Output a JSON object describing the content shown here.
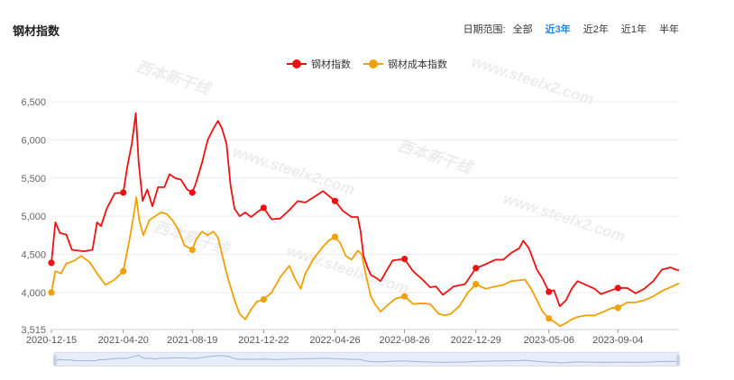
{
  "header": {
    "title": "钢材指数",
    "range_label": "日期范围:",
    "range_options": [
      "全部",
      "近3年",
      "近2年",
      "近1年",
      "半年"
    ],
    "active_range": "近3年"
  },
  "watermarks": [
    "西本新干线",
    "www.steelx2.com"
  ],
  "chart_data": {
    "type": "line",
    "legend_position": "top-center",
    "grid": true,
    "ylim": [
      3515,
      6500
    ],
    "yticks": [
      "3,515",
      "4,000",
      "4,500",
      "5,000",
      "5,500",
      "6,000",
      "6,500"
    ],
    "ytick_values": [
      3515,
      4000,
      4500,
      5000,
      5500,
      6000,
      6500
    ],
    "xticks": [
      "2020-12-15",
      "2021-04-20",
      "2021-08-19",
      "2021-12-22",
      "2022-04-26",
      "2022-08-26",
      "2022-12-29",
      "2023-05-06",
      "2023-09-04"
    ],
    "x_start": "2020-12-15",
    "x_end": "2023-12-20",
    "series": [
      {
        "name": "钢材指数",
        "color": "#ee1111",
        "points": [
          [
            "2020-12-15",
            4390
          ],
          [
            "2020-12-22",
            4920
          ],
          [
            "2020-12-30",
            4780
          ],
          [
            "2021-01-10",
            4760
          ],
          [
            "2021-01-20",
            4560
          ],
          [
            "2021-02-10",
            4540
          ],
          [
            "2021-02-25",
            4560
          ],
          [
            "2021-03-05",
            4920
          ],
          [
            "2021-03-12",
            4870
          ],
          [
            "2021-03-22",
            5100
          ],
          [
            "2021-04-05",
            5300
          ],
          [
            "2021-04-20",
            5310
          ],
          [
            "2021-04-27",
            5650
          ],
          [
            "2021-05-05",
            5950
          ],
          [
            "2021-05-12",
            6350
          ],
          [
            "2021-05-17",
            5700
          ],
          [
            "2021-05-24",
            5200
          ],
          [
            "2021-06-01",
            5350
          ],
          [
            "2021-06-10",
            5130
          ],
          [
            "2021-06-20",
            5380
          ],
          [
            "2021-07-01",
            5380
          ],
          [
            "2021-07-10",
            5550
          ],
          [
            "2021-07-20",
            5500
          ],
          [
            "2021-07-30",
            5480
          ],
          [
            "2021-08-10",
            5350
          ],
          [
            "2021-08-19",
            5310
          ],
          [
            "2021-08-26",
            5450
          ],
          [
            "2021-09-05",
            5700
          ],
          [
            "2021-09-15",
            6000
          ],
          [
            "2021-09-25",
            6150
          ],
          [
            "2021-10-03",
            6250
          ],
          [
            "2021-10-10",
            6150
          ],
          [
            "2021-10-18",
            5950
          ],
          [
            "2021-10-25",
            5400
          ],
          [
            "2021-11-01",
            5100
          ],
          [
            "2021-11-10",
            5000
          ],
          [
            "2021-11-20",
            5050
          ],
          [
            "2021-11-30",
            4990
          ],
          [
            "2021-12-10",
            5050
          ],
          [
            "2021-12-22",
            5110
          ],
          [
            "2022-01-05",
            4960
          ],
          [
            "2022-01-20",
            4970
          ],
          [
            "2022-02-05",
            5080
          ],
          [
            "2022-02-20",
            5200
          ],
          [
            "2022-03-05",
            5180
          ],
          [
            "2022-03-20",
            5250
          ],
          [
            "2022-04-05",
            5330
          ],
          [
            "2022-04-26",
            5200
          ],
          [
            "2022-05-10",
            5070
          ],
          [
            "2022-05-25",
            4990
          ],
          [
            "2022-06-05",
            4990
          ],
          [
            "2022-06-10",
            4800
          ],
          [
            "2022-06-15",
            4480
          ],
          [
            "2022-06-22",
            4330
          ],
          [
            "2022-06-28",
            4230
          ],
          [
            "2022-07-05",
            4200
          ],
          [
            "2022-07-15",
            4150
          ],
          [
            "2022-07-25",
            4280
          ],
          [
            "2022-08-05",
            4420
          ],
          [
            "2022-08-15",
            4430
          ],
          [
            "2022-08-26",
            4440
          ],
          [
            "2022-09-10",
            4280
          ],
          [
            "2022-09-25",
            4180
          ],
          [
            "2022-10-10",
            4070
          ],
          [
            "2022-10-20",
            4080
          ],
          [
            "2022-11-01",
            3970
          ],
          [
            "2022-11-10",
            4020
          ],
          [
            "2022-11-20",
            4080
          ],
          [
            "2022-12-10",
            4110
          ],
          [
            "2022-12-29",
            4320
          ],
          [
            "2023-01-15",
            4370
          ],
          [
            "2023-02-01",
            4430
          ],
          [
            "2023-02-15",
            4430
          ],
          [
            "2023-03-01",
            4520
          ],
          [
            "2023-03-15",
            4580
          ],
          [
            "2023-03-22",
            4680
          ],
          [
            "2023-04-01",
            4580
          ],
          [
            "2023-04-15",
            4300
          ],
          [
            "2023-04-25",
            4180
          ],
          [
            "2023-05-06",
            4010
          ],
          [
            "2023-05-15",
            4030
          ],
          [
            "2023-05-25",
            3820
          ],
          [
            "2023-06-05",
            3900
          ],
          [
            "2023-06-15",
            4050
          ],
          [
            "2023-06-25",
            4150
          ],
          [
            "2023-07-10",
            4100
          ],
          [
            "2023-07-25",
            4050
          ],
          [
            "2023-08-05",
            3980
          ],
          [
            "2023-08-20",
            4020
          ],
          [
            "2023-09-04",
            4060
          ],
          [
            "2023-09-20",
            4060
          ],
          [
            "2023-10-05",
            3990
          ],
          [
            "2023-10-20",
            4050
          ],
          [
            "2023-11-05",
            4150
          ],
          [
            "2023-11-20",
            4300
          ],
          [
            "2023-12-05",
            4330
          ],
          [
            "2023-12-15",
            4300
          ],
          [
            "2023-12-20",
            4290
          ]
        ],
        "markers": [
          [
            "2020-12-15",
            4390
          ],
          [
            "2021-04-20",
            5310
          ],
          [
            "2021-08-19",
            5310
          ],
          [
            "2021-12-22",
            5110
          ],
          [
            "2022-04-26",
            5200
          ],
          [
            "2022-08-26",
            4440
          ],
          [
            "2022-12-29",
            4320
          ],
          [
            "2023-05-06",
            4010
          ],
          [
            "2023-09-04",
            4060
          ]
        ]
      },
      {
        "name": "钢材成本指数",
        "color": "#f0a000",
        "points": [
          [
            "2020-12-15",
            4000
          ],
          [
            "2020-12-22",
            4280
          ],
          [
            "2021-01-01",
            4250
          ],
          [
            "2021-01-10",
            4380
          ],
          [
            "2021-01-25",
            4420
          ],
          [
            "2021-02-05",
            4480
          ],
          [
            "2021-02-20",
            4400
          ],
          [
            "2021-03-05",
            4250
          ],
          [
            "2021-03-20",
            4100
          ],
          [
            "2021-04-05",
            4170
          ],
          [
            "2021-04-20",
            4280
          ],
          [
            "2021-05-01",
            4700
          ],
          [
            "2021-05-08",
            5000
          ],
          [
            "2021-05-13",
            5250
          ],
          [
            "2021-05-18",
            4950
          ],
          [
            "2021-05-25",
            4750
          ],
          [
            "2021-06-05",
            4950
          ],
          [
            "2021-06-15",
            5000
          ],
          [
            "2021-06-25",
            5050
          ],
          [
            "2021-07-05",
            5030
          ],
          [
            "2021-07-15",
            4950
          ],
          [
            "2021-07-25",
            4830
          ],
          [
            "2021-08-05",
            4620
          ],
          [
            "2021-08-19",
            4560
          ],
          [
            "2021-08-26",
            4700
          ],
          [
            "2021-09-05",
            4800
          ],
          [
            "2021-09-15",
            4750
          ],
          [
            "2021-09-25",
            4800
          ],
          [
            "2021-10-03",
            4720
          ],
          [
            "2021-10-10",
            4500
          ],
          [
            "2021-10-20",
            4200
          ],
          [
            "2021-11-01",
            3900
          ],
          [
            "2021-11-10",
            3720
          ],
          [
            "2021-11-20",
            3650
          ],
          [
            "2021-11-30",
            3780
          ],
          [
            "2021-12-10",
            3880
          ],
          [
            "2021-12-22",
            3910
          ],
          [
            "2022-01-05",
            4000
          ],
          [
            "2022-01-20",
            4200
          ],
          [
            "2022-02-05",
            4350
          ],
          [
            "2022-02-15",
            4180
          ],
          [
            "2022-02-25",
            4050
          ],
          [
            "2022-03-05",
            4250
          ],
          [
            "2022-03-20",
            4450
          ],
          [
            "2022-04-05",
            4600
          ],
          [
            "2022-04-15",
            4680
          ],
          [
            "2022-04-26",
            4730
          ],
          [
            "2022-05-05",
            4650
          ],
          [
            "2022-05-15",
            4480
          ],
          [
            "2022-05-25",
            4430
          ],
          [
            "2022-06-05",
            4550
          ],
          [
            "2022-06-12",
            4500
          ],
          [
            "2022-06-20",
            4200
          ],
          [
            "2022-06-28",
            3950
          ],
          [
            "2022-07-05",
            3850
          ],
          [
            "2022-07-15",
            3750
          ],
          [
            "2022-07-25",
            3820
          ],
          [
            "2022-08-10",
            3920
          ],
          [
            "2022-08-26",
            3950
          ],
          [
            "2022-09-10",
            3850
          ],
          [
            "2022-09-25",
            3860
          ],
          [
            "2022-10-10",
            3850
          ],
          [
            "2022-10-25",
            3720
          ],
          [
            "2022-11-05",
            3700
          ],
          [
            "2022-11-15",
            3720
          ],
          [
            "2022-11-30",
            3820
          ],
          [
            "2022-12-15",
            4000
          ],
          [
            "2022-12-29",
            4110
          ],
          [
            "2023-01-15",
            4050
          ],
          [
            "2023-02-01",
            4080
          ],
          [
            "2023-02-15",
            4100
          ],
          [
            "2023-03-01",
            4150
          ],
          [
            "2023-03-15",
            4160
          ],
          [
            "2023-03-25",
            4170
          ],
          [
            "2023-04-05",
            4050
          ],
          [
            "2023-04-15",
            3900
          ],
          [
            "2023-04-25",
            3750
          ],
          [
            "2023-05-06",
            3660
          ],
          [
            "2023-05-15",
            3620
          ],
          [
            "2023-05-25",
            3560
          ],
          [
            "2023-06-05",
            3600
          ],
          [
            "2023-06-15",
            3650
          ],
          [
            "2023-06-25",
            3680
          ],
          [
            "2023-07-10",
            3700
          ],
          [
            "2023-07-25",
            3700
          ],
          [
            "2023-08-10",
            3750
          ],
          [
            "2023-08-25",
            3800
          ],
          [
            "2023-09-04",
            3800
          ],
          [
            "2023-09-20",
            3870
          ],
          [
            "2023-10-05",
            3870
          ],
          [
            "2023-10-20",
            3900
          ],
          [
            "2023-11-05",
            3950
          ],
          [
            "2023-11-20",
            4020
          ],
          [
            "2023-12-05",
            4070
          ],
          [
            "2023-12-20",
            4120
          ]
        ],
        "markers": [
          [
            "2020-12-15",
            4000
          ],
          [
            "2021-04-20",
            4280
          ],
          [
            "2021-08-19",
            4560
          ],
          [
            "2021-12-22",
            3910
          ],
          [
            "2022-04-26",
            4730
          ],
          [
            "2022-08-26",
            3950
          ],
          [
            "2022-12-29",
            4110
          ],
          [
            "2023-05-06",
            3660
          ],
          [
            "2023-09-04",
            3800
          ]
        ]
      }
    ]
  }
}
